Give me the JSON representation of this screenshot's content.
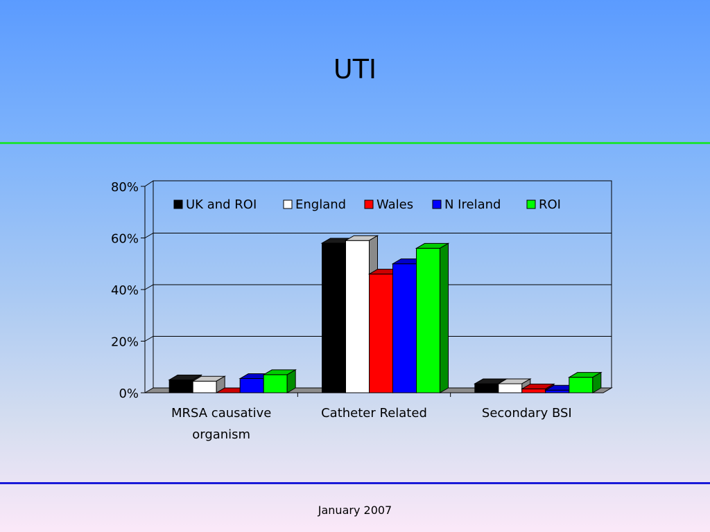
{
  "slide": {
    "title": "UTI",
    "footer": "January 2007"
  },
  "chart_data": {
    "type": "bar",
    "title": "",
    "xlabel": "",
    "ylabel": "",
    "ylim": [
      0,
      80
    ],
    "y_ticks": [
      "0%",
      "20%",
      "40%",
      "60%",
      "80%"
    ],
    "y_tick_values": [
      0,
      20,
      40,
      60,
      80
    ],
    "grid": true,
    "legend_position": "top",
    "categories": [
      [
        "MRSA causative",
        "organism"
      ],
      [
        "Catheter Related"
      ],
      [
        "Secondary BSI"
      ]
    ],
    "series": [
      {
        "name": "UK and ROI",
        "color": "#000000",
        "values": [
          5,
          58,
          3.5
        ]
      },
      {
        "name": "England",
        "color": "#ffffff",
        "values": [
          4.5,
          59,
          3.5
        ]
      },
      {
        "name": "Wales",
        "color": "#ff0000",
        "values": [
          0,
          46,
          1.5
        ]
      },
      {
        "name": "N Ireland",
        "color": "#0000ff",
        "values": [
          5.5,
          50,
          1
        ]
      },
      {
        "name": "ROI",
        "color": "#00ff00",
        "values": [
          7,
          56,
          6
        ]
      }
    ]
  }
}
